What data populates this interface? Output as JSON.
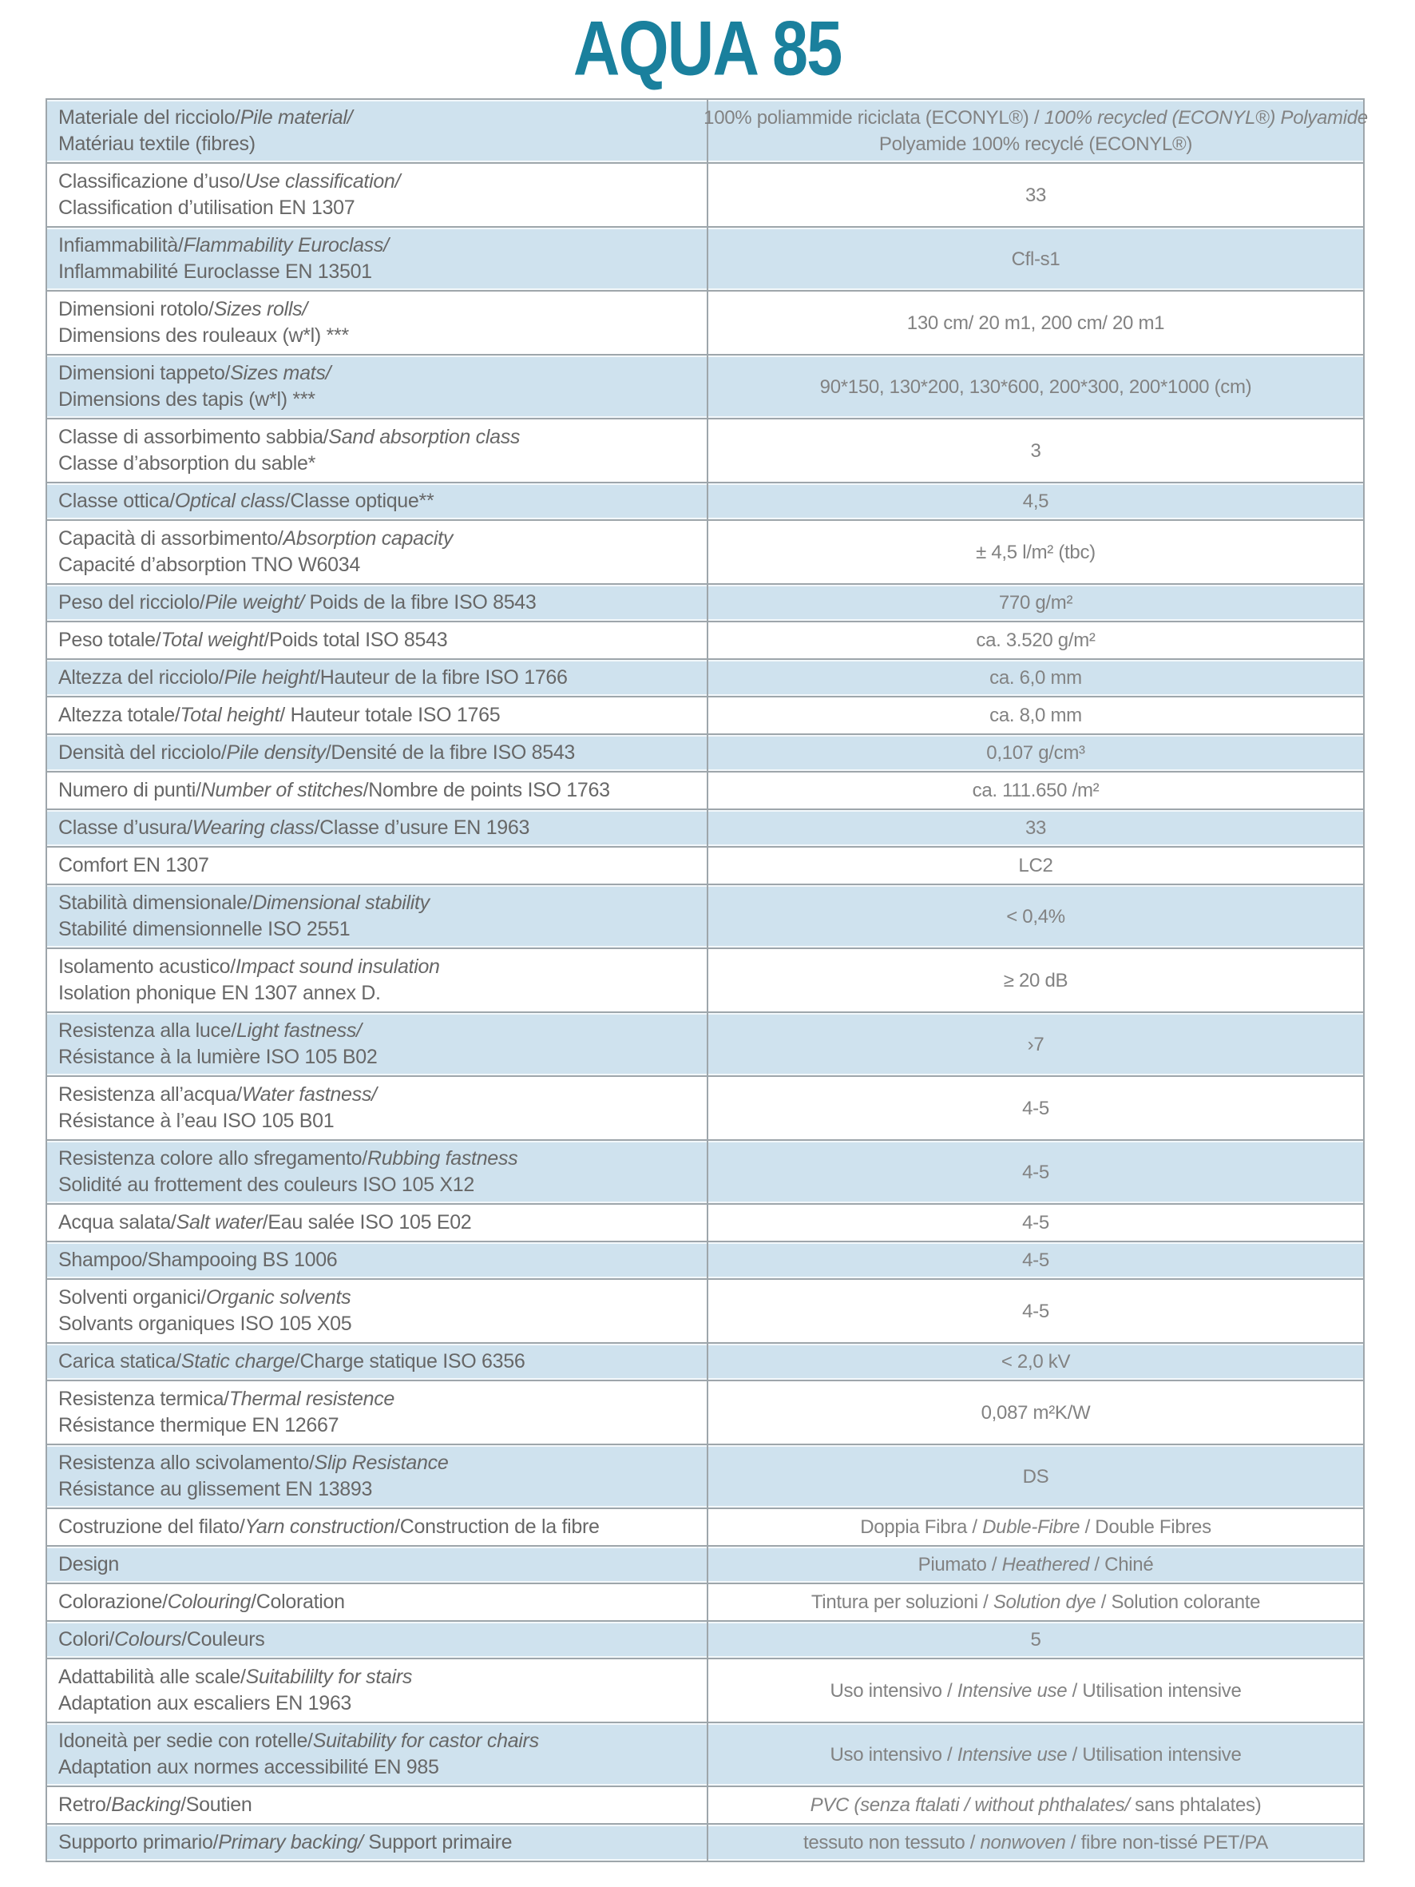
{
  "page": {
    "title": "AQUA 85"
  },
  "colors": {
    "accent_teal": "#1a809d",
    "row_blue": "#cfe2ee",
    "border_gray": "#9ea6ab",
    "label_text": "#676767",
    "value_text": "#828282"
  },
  "table": {
    "rows": [
      {
        "bg": "blue",
        "label": [
          [
            [
              "Materiale del ricciolo/",
              0
            ],
            [
              "Pile material/",
              1
            ]
          ],
          [
            [
              "Matériau textile (fibres)",
              0
            ]
          ]
        ],
        "value": [
          [
            [
              "100% poliammide riciclata (ECONYL®) / ",
              0
            ],
            [
              "100% recycled (ECONYL®) Polyamide",
              1
            ]
          ],
          [
            [
              "Polyamide 100% recyclé (ECONYL®)",
              0
            ]
          ]
        ]
      },
      {
        "bg": "white",
        "label": [
          [
            [
              "Classificazione d’uso/",
              0
            ],
            [
              "Use classification/",
              1
            ]
          ],
          [
            [
              "Classification d’utilisation EN 1307",
              0
            ]
          ]
        ],
        "value": [
          [
            [
              "33",
              0
            ]
          ]
        ]
      },
      {
        "bg": "blue",
        "label": [
          [
            [
              "Infiammabilità/",
              0
            ],
            [
              "Flammability Euroclass/",
              1
            ]
          ],
          [
            [
              "Inflammabilité Euroclasse EN 13501",
              0
            ]
          ]
        ],
        "value": [
          [
            [
              "Cfl-s1",
              0
            ]
          ]
        ]
      },
      {
        "bg": "white",
        "label": [
          [
            [
              "Dimensioni rotolo/",
              0
            ],
            [
              "Sizes rolls/",
              1
            ]
          ],
          [
            [
              "Dimensions des rouleaux (w*l) ***",
              0
            ]
          ]
        ],
        "value": [
          [
            [
              "130 cm/ 20 m1, 200 cm/ 20 m1",
              0
            ]
          ]
        ]
      },
      {
        "bg": "blue",
        "label": [
          [
            [
              "Dimensioni tappeto/",
              0
            ],
            [
              "Sizes mats/",
              1
            ]
          ],
          [
            [
              "Dimensions des tapis (w*l) ***",
              0
            ]
          ]
        ],
        "value": [
          [
            [
              "90*150, 130*200, 130*600, 200*300, 200*1000 (cm)",
              0
            ]
          ]
        ]
      },
      {
        "bg": "white",
        "label": [
          [
            [
              "Classe di assorbimento sabbia/",
              0
            ],
            [
              "Sand absorption class",
              1
            ]
          ],
          [
            [
              "Classe d’absorption du sable*",
              0
            ]
          ]
        ],
        "value": [
          [
            [
              "3",
              0
            ]
          ]
        ]
      },
      {
        "bg": "blue",
        "label": [
          [
            [
              "Classe ottica/",
              0
            ],
            [
              "Optical class",
              1
            ],
            [
              "/Classe optique**",
              0
            ]
          ]
        ],
        "value": [
          [
            [
              "4,5",
              0
            ]
          ]
        ]
      },
      {
        "bg": "white",
        "label": [
          [
            [
              "Capacità di assorbimento/",
              0
            ],
            [
              "Absorption capacity",
              1
            ]
          ],
          [
            [
              "Capacité d’absorption TNO W6034",
              0
            ]
          ]
        ],
        "value": [
          [
            [
              "± 4,5 l/m² (tbc)",
              0
            ]
          ]
        ]
      },
      {
        "bg": "blue",
        "label": [
          [
            [
              "Peso del ricciolo/",
              0
            ],
            [
              "Pile weight/",
              1
            ],
            [
              " Poids de la fibre ISO 8543",
              0
            ]
          ]
        ],
        "value": [
          [
            [
              "770 g/m²",
              0
            ]
          ]
        ]
      },
      {
        "bg": "white",
        "label": [
          [
            [
              "Peso totale/",
              0
            ],
            [
              "Total weight",
              1
            ],
            [
              "/Poids total ISO 8543",
              0
            ]
          ]
        ],
        "value": [
          [
            [
              "ca. 3.520 g/m²",
              0
            ]
          ]
        ]
      },
      {
        "bg": "blue",
        "label": [
          [
            [
              "Altezza del ricciolo/",
              0
            ],
            [
              "Pile height",
              1
            ],
            [
              "/Hauteur de la fibre ISO 1766",
              0
            ]
          ]
        ],
        "value": [
          [
            [
              "ca. 6,0 mm",
              0
            ]
          ]
        ]
      },
      {
        "bg": "white",
        "label": [
          [
            [
              "Altezza totale/",
              0
            ],
            [
              "Total height",
              1
            ],
            [
              "/ Hauteur totale ISO 1765",
              0
            ]
          ]
        ],
        "value": [
          [
            [
              "ca. 8,0 mm",
              0
            ]
          ]
        ]
      },
      {
        "bg": "blue",
        "label": [
          [
            [
              "Densità del ricciolo/",
              0
            ],
            [
              "Pile density",
              1
            ],
            [
              "/Densité de la fibre ISO 8543",
              0
            ]
          ]
        ],
        "value": [
          [
            [
              "0,107 g/cm³",
              0
            ]
          ]
        ]
      },
      {
        "bg": "white",
        "label": [
          [
            [
              "Numero di punti/",
              0
            ],
            [
              "Number of stitches",
              1
            ],
            [
              "/Nombre de points ISO 1763",
              0
            ]
          ]
        ],
        "value": [
          [
            [
              "ca. 111.650 /m²",
              0
            ]
          ]
        ]
      },
      {
        "bg": "blue",
        "label": [
          [
            [
              "Classe d’usura/",
              0
            ],
            [
              "Wearing class",
              1
            ],
            [
              "/Classe d’usure EN 1963",
              0
            ]
          ]
        ],
        "value": [
          [
            [
              "33",
              0
            ]
          ]
        ]
      },
      {
        "bg": "white",
        "label": [
          [
            [
              "Comfort EN 1307",
              0
            ]
          ]
        ],
        "value": [
          [
            [
              "LC2",
              0
            ]
          ]
        ]
      },
      {
        "bg": "blue",
        "label": [
          [
            [
              "Stabilità dimensionale/",
              0
            ],
            [
              "Dimensional stability",
              1
            ]
          ],
          [
            [
              "Stabilité dimensionnelle ISO 2551",
              0
            ]
          ]
        ],
        "value": [
          [
            [
              "< 0,4%",
              0
            ]
          ]
        ]
      },
      {
        "bg": "white",
        "label": [
          [
            [
              "Isolamento acustico/",
              0
            ],
            [
              "Impact sound insulation",
              1
            ]
          ],
          [
            [
              "Isolation phonique EN 1307 annex D.",
              0
            ]
          ]
        ],
        "value": [
          [
            [
              "≥ 20 dB",
              0
            ]
          ]
        ]
      },
      {
        "bg": "blue",
        "label": [
          [
            [
              "Resistenza alla luce/",
              0
            ],
            [
              "Light fastness/",
              1
            ]
          ],
          [
            [
              "Résistance à la lumière ISO 105 B02",
              0
            ]
          ]
        ],
        "value": [
          [
            [
              "›7",
              0
            ]
          ]
        ]
      },
      {
        "bg": "white",
        "label": [
          [
            [
              "Resistenza all’acqua/",
              0
            ],
            [
              "Water fastness/",
              1
            ]
          ],
          [
            [
              "Résistance à l’eau ISO 105 B01",
              0
            ]
          ]
        ],
        "value": [
          [
            [
              "4-5",
              0
            ]
          ]
        ]
      },
      {
        "bg": "blue",
        "label": [
          [
            [
              "Resistenza colore allo sfregamento/",
              0
            ],
            [
              "Rubbing fastness",
              1
            ]
          ],
          [
            [
              "Solidité au frottement des couleurs ISO 105 X12",
              0
            ]
          ]
        ],
        "value": [
          [
            [
              "4-5",
              0
            ]
          ]
        ]
      },
      {
        "bg": "white",
        "label": [
          [
            [
              "Acqua salata/",
              0
            ],
            [
              "Salt water",
              1
            ],
            [
              "/Eau salée ISO 105 E02",
              0
            ]
          ]
        ],
        "value": [
          [
            [
              "4-5",
              0
            ]
          ]
        ]
      },
      {
        "bg": "blue",
        "label": [
          [
            [
              "Shampoo/Shampooing BS 1006",
              0
            ]
          ]
        ],
        "value": [
          [
            [
              "4-5",
              0
            ]
          ]
        ]
      },
      {
        "bg": "white",
        "label": [
          [
            [
              "Solventi organici/",
              0
            ],
            [
              "Organic solvents",
              1
            ]
          ],
          [
            [
              "Solvants organiques ISO 105 X05",
              0
            ]
          ]
        ],
        "value": [
          [
            [
              "4-5",
              0
            ]
          ]
        ]
      },
      {
        "bg": "blue",
        "label": [
          [
            [
              "Carica statica/",
              0
            ],
            [
              "Static charge",
              1
            ],
            [
              "/Charge statique ISO 6356",
              0
            ]
          ]
        ],
        "value": [
          [
            [
              "< 2,0 kV",
              0
            ]
          ]
        ]
      },
      {
        "bg": "white",
        "label": [
          [
            [
              "Resistenza termica/",
              0
            ],
            [
              "Thermal resistence",
              1
            ]
          ],
          [
            [
              "Résistance thermique EN 12667",
              0
            ]
          ]
        ],
        "value": [
          [
            [
              "0,087 m²K/W",
              0
            ]
          ]
        ]
      },
      {
        "bg": "blue",
        "label": [
          [
            [
              "Resistenza allo scivolamento/",
              0
            ],
            [
              "Slip Resistance",
              1
            ]
          ],
          [
            [
              "Résistance au glissement EN 13893",
              0
            ]
          ]
        ],
        "value": [
          [
            [
              "DS",
              0
            ]
          ]
        ]
      },
      {
        "bg": "white",
        "label": [
          [
            [
              "Costruzione del filato/",
              0
            ],
            [
              "Yarn construction",
              1
            ],
            [
              "/Construction de la fibre",
              0
            ]
          ]
        ],
        "value": [
          [
            [
              "Doppia Fibra / ",
              0
            ],
            [
              "Duble-Fibre",
              1
            ],
            [
              " / Double Fibres",
              0
            ]
          ]
        ]
      },
      {
        "bg": "blue",
        "label": [
          [
            [
              "Design",
              0
            ]
          ]
        ],
        "value": [
          [
            [
              "Piumato / ",
              0
            ],
            [
              "Heathered",
              1
            ],
            [
              " / Chiné",
              0
            ]
          ]
        ]
      },
      {
        "bg": "white",
        "label": [
          [
            [
              "Colorazione/",
              0
            ],
            [
              "Colouring",
              1
            ],
            [
              "/Coloration",
              0
            ]
          ]
        ],
        "value": [
          [
            [
              "Tintura per soluzioni / ",
              0
            ],
            [
              "Solution dye",
              1
            ],
            [
              " / Solution colorante",
              0
            ]
          ]
        ]
      },
      {
        "bg": "blue",
        "label": [
          [
            [
              "Colori/",
              0
            ],
            [
              "Colours",
              1
            ],
            [
              "/Couleurs",
              0
            ]
          ]
        ],
        "value": [
          [
            [
              "5",
              0
            ]
          ]
        ]
      },
      {
        "bg": "white",
        "label": [
          [
            [
              "Adattabilità alle scale/",
              0
            ],
            [
              "Suitabililty for stairs",
              1
            ]
          ],
          [
            [
              "Adaptation aux escaliers EN 1963",
              0
            ]
          ]
        ],
        "value": [
          [
            [
              "Uso intensivo / ",
              0
            ],
            [
              "Intensive use",
              1
            ],
            [
              " / Utilisation intensive",
              0
            ]
          ]
        ]
      },
      {
        "bg": "blue",
        "label": [
          [
            [
              "Idoneità per sedie con rotelle/",
              0
            ],
            [
              "Suitability for castor chairs",
              1
            ]
          ],
          [
            [
              "Adaptation aux normes accessibilité EN 985",
              0
            ]
          ]
        ],
        "value": [
          [
            [
              "Uso intensivo / ",
              0
            ],
            [
              "Intensive use",
              1
            ],
            [
              " / Utilisation intensive",
              0
            ]
          ]
        ]
      },
      {
        "bg": "white",
        "label": [
          [
            [
              "Retro/",
              0
            ],
            [
              "Backing",
              1
            ],
            [
              "/Soutien",
              0
            ]
          ]
        ],
        "value": [
          [
            [
              "PVC (senza ftalati / ",
              1
            ],
            [
              "without phthalates/",
              1
            ],
            [
              " sans phtalates)",
              0
            ]
          ]
        ]
      },
      {
        "bg": "blue",
        "label": [
          [
            [
              "Supporto primario/",
              0
            ],
            [
              "Primary backing/",
              1
            ],
            [
              " Support primaire",
              0
            ]
          ]
        ],
        "value": [
          [
            [
              "tessuto non tessuto / ",
              0
            ],
            [
              "nonwoven",
              1
            ],
            [
              " / fibre non-tissé PET/PA",
              0
            ]
          ]
        ]
      }
    ]
  }
}
